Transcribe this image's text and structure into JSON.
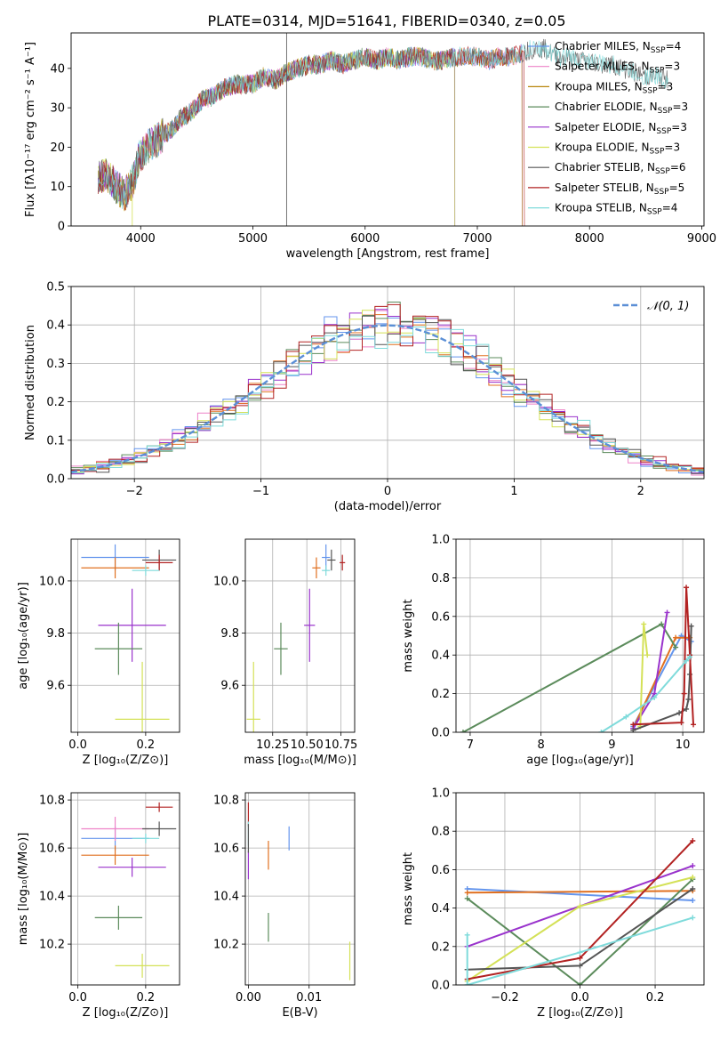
{
  "figure": {
    "title": "PLATE=0314, MJD=51641, FIBERID=0340, z=0.05"
  },
  "chart_data": [
    {
      "id": "spectrum",
      "type": "line",
      "xlabel": "wavelength [Angstrom, rest frame]",
      "ylabel": "Flux [fλ10⁻¹⁷ erg cm⁻² s⁻¹ A⁻¹]",
      "xlim": [
        3380,
        9020
      ],
      "ylim": [
        0,
        49
      ],
      "xticks": [
        4000,
        5000,
        6000,
        7000,
        8000,
        9000
      ],
      "yticks": [
        0,
        10,
        20,
        30,
        40
      ],
      "grid": false,
      "legend_position": "top-right",
      "shape_points": [
        [
          3620,
          12
        ],
        [
          3700,
          13
        ],
        [
          3780,
          10
        ],
        [
          3860,
          8
        ],
        [
          3940,
          12
        ],
        [
          3980,
          17
        ],
        [
          4050,
          20
        ],
        [
          4150,
          22
        ],
        [
          4250,
          24
        ],
        [
          4350,
          27
        ],
        [
          4450,
          29
        ],
        [
          4550,
          32
        ],
        [
          4650,
          33
        ],
        [
          4750,
          35
        ],
        [
          4850,
          36
        ],
        [
          5000,
          36
        ],
        [
          5100,
          38
        ],
        [
          5200,
          37
        ],
        [
          5300,
          39
        ],
        [
          5400,
          40
        ],
        [
          5500,
          41
        ],
        [
          5600,
          41
        ],
        [
          5700,
          42
        ],
        [
          5800,
          41
        ],
        [
          5900,
          42
        ],
        [
          6000,
          43
        ],
        [
          6100,
          42
        ],
        [
          6200,
          43
        ],
        [
          6300,
          42
        ],
        [
          6400,
          43
        ],
        [
          6500,
          43
        ],
        [
          6600,
          42
        ],
        [
          6700,
          42
        ],
        [
          6800,
          43
        ],
        [
          6900,
          43
        ],
        [
          7000,
          43
        ],
        [
          7100,
          42
        ],
        [
          7200,
          43
        ],
        [
          7300,
          43
        ],
        [
          7400,
          44
        ],
        [
          7500,
          45
        ],
        [
          7600,
          45
        ],
        [
          7700,
          43
        ],
        [
          7800,
          43
        ],
        [
          7900,
          42
        ],
        [
          8000,
          42
        ],
        [
          8100,
          41
        ],
        [
          8200,
          41
        ],
        [
          8300,
          40
        ],
        [
          8400,
          39
        ],
        [
          8500,
          38
        ],
        [
          8600,
          38
        ],
        [
          8700,
          37
        ]
      ],
      "series": [
        {
          "name": "Chabrier MILES, N$_{SSP}$=4",
          "label_main": "Chabrier MILES, N",
          "label_sub": "SSP",
          "label_tail": "=4",
          "color": "#6495ed",
          "end_wl": 7400
        },
        {
          "name": "Salpeter MILES, N$_{SSP}$=3",
          "label_main": "Salpeter MILES, N",
          "label_sub": "SSP",
          "label_tail": "=3",
          "color": "#ee82c8",
          "end_wl": 7400
        },
        {
          "name": "Kroupa MILES, N$_{SSP}$=3",
          "label_main": "Kroupa MILES, N",
          "label_sub": "SSP",
          "label_tail": "=3",
          "color": "#b8860b",
          "end_wl": 7400
        },
        {
          "name": "Chabrier ELODIE, N$_{SSP}$=3",
          "label_main": "Chabrier ELODIE, N",
          "label_sub": "SSP",
          "label_tail": "=3",
          "color": "#5b8b5b",
          "end_wl": 6800
        },
        {
          "name": "Salpeter ELODIE, N$_{SSP}$=3",
          "label_main": "Salpeter ELODIE, N",
          "label_sub": "SSP",
          "label_tail": "=3",
          "color": "#9932cc",
          "end_wl": 6800
        },
        {
          "name": "Kroupa ELODIE, N$_{SSP}$=3",
          "label_main": "Kroupa ELODIE, N",
          "label_sub": "SSP",
          "label_tail": "=3",
          "color": "#d4e157",
          "end_wl": 6800
        },
        {
          "name": "Chabrier STELIB, N$_{SSP}$=6",
          "label_main": "Chabrier STELIB, N",
          "label_sub": "SSP",
          "label_tail": "=6",
          "color": "#555555",
          "end_wl": 8700
        },
        {
          "name": "Salpeter STELIB, N$_{SSP}$=5",
          "label_main": "Salpeter STELIB, N",
          "label_sub": "SSP",
          "label_tail": "=5",
          "color": "#b22222",
          "end_wl": 7420
        },
        {
          "name": "Kroupa STELIB, N$_{SSP}$=4",
          "label_main": "Kroupa STELIB, N",
          "label_sub": "SSP",
          "label_tail": "=4",
          "color": "#7fdbdb",
          "end_wl": 8700
        }
      ]
    },
    {
      "id": "residuals",
      "type": "line",
      "xlabel": "(data-model)/error",
      "ylabel": "Normed distribution",
      "xlim": [
        -2.5,
        2.5
      ],
      "ylim": [
        0,
        0.5
      ],
      "xticks": [
        -2,
        -1,
        0,
        1,
        2
      ],
      "yticks": [
        0.0,
        0.1,
        0.2,
        0.3,
        0.4,
        0.5
      ],
      "grid": true,
      "legend_position": "top-right",
      "reference": {
        "name": "$\\mathcal{N}(0,1)$",
        "label": "𝒩(0, 1)",
        "color": "#5b8fd6",
        "mu": 0,
        "sigma": 1
      },
      "histogram": {
        "bin_start": -2.5,
        "bin_width": 0.1,
        "series_colors": [
          "#6495ed",
          "#ee82c8",
          "#e07020",
          "#5b8b5b",
          "#9932cc",
          "#d4e157",
          "#555555",
          "#b22222",
          "#7fdbdb"
        ]
      }
    },
    {
      "id": "age-vs-Z",
      "type": "scatter",
      "xlabel": "Z [log₁₀(Z/Z⊙)]",
      "ylabel": "age  [log₁₀(age/yr)]",
      "xlim": [
        -0.02,
        0.3
      ],
      "ylim": [
        9.42,
        10.16
      ],
      "xticks": [
        0.0,
        0.2
      ],
      "yticks": [
        9.6,
        9.8,
        10.0
      ],
      "grid": true,
      "points": [
        {
          "x": 0.11,
          "y": 10.09,
          "xerr": 0.1,
          "yerr": 0.05,
          "color": "#6495ed"
        },
        {
          "x": 0.11,
          "y": 10.05,
          "xerr": 0.1,
          "yerr": 0.04,
          "color": "#e07020"
        },
        {
          "x": 0.24,
          "y": 10.08,
          "xerr": 0.05,
          "yerr": 0.04,
          "color": "#555555"
        },
        {
          "x": 0.24,
          "y": 10.07,
          "xerr": 0.04,
          "yerr": 0.03,
          "color": "#b22222"
        },
        {
          "x": 0.2,
          "y": 10.04,
          "xerr": 0.04,
          "yerr": 0.02,
          "color": "#7fdbdb"
        },
        {
          "x": 0.16,
          "y": 9.83,
          "xerr": 0.1,
          "yerr": 0.14,
          "color": "#9932cc"
        },
        {
          "x": 0.12,
          "y": 9.74,
          "xerr": 0.07,
          "yerr": 0.1,
          "color": "#5b8b5b"
        },
        {
          "x": 0.19,
          "y": 9.47,
          "xerr": 0.08,
          "yerr": 0.22,
          "color": "#d4e157"
        }
      ]
    },
    {
      "id": "age-vs-mass",
      "type": "scatter",
      "xlabel": "mass [log₁₀(M/M⊙)]",
      "ylabel": "",
      "xlim": [
        10.05,
        10.85
      ],
      "ylim": [
        9.42,
        10.16
      ],
      "xticks": [
        10.25,
        10.5,
        10.75
      ],
      "yticks": [
        9.6,
        9.8,
        10.0
      ],
      "grid": true,
      "points": [
        {
          "x": 10.64,
          "y": 10.09,
          "xerr": 0.03,
          "yerr": 0.05,
          "color": "#6495ed"
        },
        {
          "x": 10.57,
          "y": 10.05,
          "xerr": 0.03,
          "yerr": 0.04,
          "color": "#e07020"
        },
        {
          "x": 10.68,
          "y": 10.08,
          "xerr": 0.03,
          "yerr": 0.04,
          "color": "#555555"
        },
        {
          "x": 10.76,
          "y": 10.07,
          "xerr": 0.02,
          "yerr": 0.03,
          "color": "#b22222"
        },
        {
          "x": 10.64,
          "y": 10.04,
          "xerr": 0.03,
          "yerr": 0.02,
          "color": "#7fdbdb"
        },
        {
          "x": 10.52,
          "y": 9.83,
          "xerr": 0.04,
          "yerr": 0.14,
          "color": "#9932cc"
        },
        {
          "x": 10.31,
          "y": 9.74,
          "xerr": 0.05,
          "yerr": 0.1,
          "color": "#5b8b5b"
        },
        {
          "x": 10.11,
          "y": 9.47,
          "xerr": 0.05,
          "yerr": 0.22,
          "color": "#d4e157"
        }
      ]
    },
    {
      "id": "weight-vs-age",
      "type": "line",
      "xlabel": "age  [log₁₀(age/yr)]",
      "ylabel": "mass weight",
      "xlim": [
        6.8,
        10.3
      ],
      "ylim": [
        0,
        1
      ],
      "xticks": [
        7,
        8,
        9,
        10
      ],
      "yticks": [
        0.0,
        0.2,
        0.4,
        0.6,
        0.8,
        1.0
      ],
      "grid": true,
      "series": [
        {
          "color": "#6495ed",
          "points": [
            [
              9.3,
              0.03
            ],
            [
              9.98,
              0.5
            ],
            [
              10.12,
              0.47
            ]
          ]
        },
        {
          "color": "#e07020",
          "points": [
            [
              9.3,
              0.02
            ],
            [
              9.9,
              0.49
            ],
            [
              10.1,
              0.49
            ]
          ]
        },
        {
          "color": "#5b8b5b",
          "points": [
            [
              6.9,
              0.0
            ],
            [
              9.7,
              0.56
            ],
            [
              9.9,
              0.44
            ]
          ]
        },
        {
          "color": "#9932cc",
          "points": [
            [
              9.3,
              0.02
            ],
            [
              9.6,
              0.2
            ],
            [
              9.78,
              0.62
            ]
          ]
        },
        {
          "color": "#d4e157",
          "points": [
            [
              9.4,
              0.03
            ],
            [
              9.45,
              0.56
            ],
            [
              9.5,
              0.4
            ]
          ]
        },
        {
          "color": "#555555",
          "points": [
            [
              9.3,
              0.01
            ],
            [
              9.95,
              0.1
            ],
            [
              10.05,
              0.12
            ],
            [
              10.08,
              0.17
            ],
            [
              10.1,
              0.3
            ],
            [
              10.12,
              0.55
            ]
          ]
        },
        {
          "color": "#b22222",
          "points": [
            [
              9.3,
              0.04
            ],
            [
              9.98,
              0.05
            ],
            [
              10.02,
              0.2
            ],
            [
              10.05,
              0.75
            ],
            [
              10.1,
              0.4
            ],
            [
              10.15,
              0.04
            ]
          ]
        },
        {
          "color": "#7fdbdb",
          "points": [
            [
              8.85,
              0.0
            ],
            [
              9.2,
              0.08
            ],
            [
              9.6,
              0.18
            ],
            [
              10.05,
              0.37
            ],
            [
              10.1,
              0.39
            ]
          ]
        }
      ]
    },
    {
      "id": "mass-vs-Z",
      "type": "scatter",
      "xlabel": "Z [log₁₀(Z/Z⊙)]",
      "ylabel": "mass [log₁₀(M/M⊙)]",
      "xlim": [
        -0.02,
        0.3
      ],
      "ylim": [
        10.03,
        10.83
      ],
      "xticks": [
        0.0,
        0.2
      ],
      "yticks": [
        10.2,
        10.4,
        10.6,
        10.8
      ],
      "grid": true,
      "points": [
        {
          "x": 0.11,
          "y": 10.64,
          "xerr": 0.1,
          "yerr": 0.05,
          "color": "#6495ed"
        },
        {
          "x": 0.11,
          "y": 10.68,
          "xerr": 0.1,
          "yerr": 0.05,
          "color": "#ee82c8"
        },
        {
          "x": 0.11,
          "y": 10.57,
          "xerr": 0.1,
          "yerr": 0.04,
          "color": "#e07020"
        },
        {
          "x": 0.24,
          "y": 10.68,
          "xerr": 0.05,
          "yerr": 0.03,
          "color": "#555555"
        },
        {
          "x": 0.24,
          "y": 10.77,
          "xerr": 0.04,
          "yerr": 0.02,
          "color": "#b22222"
        },
        {
          "x": 0.2,
          "y": 10.64,
          "xerr": 0.04,
          "yerr": 0.02,
          "color": "#7fdbdb"
        },
        {
          "x": 0.16,
          "y": 10.52,
          "xerr": 0.1,
          "yerr": 0.04,
          "color": "#9932cc"
        },
        {
          "x": 0.12,
          "y": 10.31,
          "xerr": 0.07,
          "yerr": 0.05,
          "color": "#5b8b5b"
        },
        {
          "x": 0.19,
          "y": 10.11,
          "xerr": 0.08,
          "yerr": 0.05,
          "color": "#d4e157"
        }
      ]
    },
    {
      "id": "mass-vs-EBV",
      "type": "scatter",
      "xlabel": "E(B-V)",
      "ylabel": "",
      "xlim": [
        -0.0005,
        0.0175
      ],
      "ylim": [
        10.03,
        10.83
      ],
      "xticks": [
        0.0,
        0.01
      ],
      "yticks": [
        10.2,
        10.4,
        10.6,
        10.8
      ],
      "grid": true,
      "points": [
        {
          "x": 0.0067,
          "y": 10.64,
          "yerr": 0.05,
          "color": "#6495ed"
        },
        {
          "x": 0.0033,
          "y": 10.57,
          "yerr": 0.06,
          "color": "#e07020"
        },
        {
          "x": 0.0033,
          "y": 10.27,
          "yerr": 0.06,
          "color": "#5b8b5b"
        },
        {
          "x": 0.0,
          "y": 10.74,
          "yerr": 0.05,
          "color": "#b22222"
        },
        {
          "x": 0.0,
          "y": 10.66,
          "yerr": 0.05,
          "color": "#7fdbdb"
        },
        {
          "x": 0.0,
          "y": 10.53,
          "yerr": 0.06,
          "color": "#9932cc"
        },
        {
          "x": 0.0,
          "y": 10.64,
          "yerr": 0.06,
          "color": "#555555"
        },
        {
          "x": 0.0167,
          "y": 10.13,
          "yerr": 0.08,
          "color": "#d4e157"
        }
      ]
    },
    {
      "id": "weight-vs-Z",
      "type": "line",
      "xlabel": "Z [log₁₀(Z/Z⊙)]",
      "ylabel": "mass weight",
      "xlim": [
        -0.33,
        0.33
      ],
      "ylim": [
        0,
        1
      ],
      "xticks": [
        -0.2,
        0.0,
        0.2
      ],
      "yticks": [
        0.0,
        0.2,
        0.4,
        0.6,
        0.8,
        1.0
      ],
      "grid": true,
      "series": [
        {
          "color": "#6495ed",
          "points": [
            [
              -0.3,
              0.5
            ],
            [
              0.3,
              0.44
            ]
          ]
        },
        {
          "color": "#e07020",
          "points": [
            [
              -0.3,
              0.48
            ],
            [
              0.3,
              0.49
            ]
          ]
        },
        {
          "color": "#5b8b5b",
          "points": [
            [
              -0.3,
              0.45
            ],
            [
              0.0,
              0.0
            ],
            [
              0.3,
              0.55
            ]
          ]
        },
        {
          "color": "#9932cc",
          "points": [
            [
              -0.3,
              0.2
            ],
            [
              0.3,
              0.62
            ]
          ]
        },
        {
          "color": "#d4e157",
          "points": [
            [
              -0.3,
              0.02
            ],
            [
              0.0,
              0.41
            ],
            [
              0.3,
              0.56
            ]
          ]
        },
        {
          "color": "#555555",
          "points": [
            [
              -0.3,
              0.08
            ],
            [
              0.0,
              0.1
            ],
            [
              0.3,
              0.5
            ]
          ]
        },
        {
          "color": "#b22222",
          "points": [
            [
              -0.3,
              0.03
            ],
            [
              0.0,
              0.14
            ],
            [
              0.3,
              0.75
            ]
          ]
        },
        {
          "color": "#7fdbdb",
          "points": [
            [
              -0.3,
              0.26
            ],
            [
              -0.3,
              0.0
            ],
            [
              0.0,
              0.17
            ],
            [
              0.3,
              0.35
            ]
          ]
        }
      ]
    }
  ]
}
